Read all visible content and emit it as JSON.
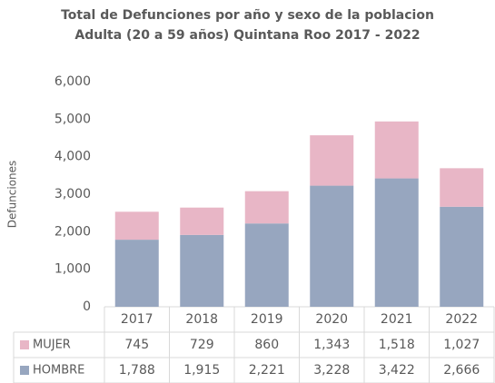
{
  "chart_data": {
    "type": "stacked_bar",
    "title": "Total de Defunciones por año y sexo de la poblacion Adulta (20 a 59 años) Quintana Roo 2017 - 2022",
    "ylabel": "Defunciones",
    "categories": [
      "2017",
      "2018",
      "2019",
      "2020",
      "2021",
      "2022"
    ],
    "series": [
      {
        "name": "HOMBRE",
        "color": "#97a6bf",
        "values": [
          1788,
          1915,
          2221,
          3228,
          3422,
          2666
        ],
        "value_labels": [
          "1,788",
          "1,915",
          "2,221",
          "3,228",
          "3,422",
          "2,666"
        ]
      },
      {
        "name": "MUJER",
        "color": "#e8b6c6",
        "values": [
          745,
          729,
          860,
          1343,
          1518,
          1027
        ],
        "value_labels": [
          "745",
          "729",
          "860",
          "1,343",
          "1,518",
          "1,027"
        ]
      }
    ],
    "ylim": [
      0,
      6000
    ],
    "yticks": [
      0,
      {
        "value": 1000,
        "label": "1,000"
      },
      {
        "value": 2000,
        "label": "2,000"
      },
      {
        "value": 3000,
        "label": "3,000"
      },
      {
        "value": 4000,
        "label": "4,000"
      },
      {
        "value": 5000,
        "label": "5,000"
      },
      {
        "value": 6000,
        "label": "6,000"
      }
    ]
  }
}
